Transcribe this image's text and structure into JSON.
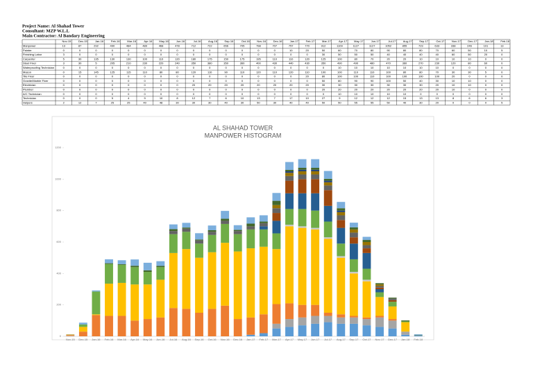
{
  "header": {
    "project": "Project Name: Al Shahad  Tower",
    "consultant": "Consultant: MZP W.L.L",
    "contractor": "Main Contractor: Al Bandary Engineering"
  },
  "chart_data": {
    "type": "bar",
    "stacked": true,
    "title": "AL SHAHAD TOWER",
    "subtitle": "MANPOWER HISTOGRAM",
    "categories": [
      "Nov-15",
      "Dec-15",
      "Jan-16",
      "Feb-16",
      "Mar-16",
      "Apr-16",
      "May-16",
      "Jun-16",
      "Jul-16",
      "Aug-16",
      "Sep-16",
      "Oct-16",
      "Nov-16",
      "Dec-16",
      "Jan-17",
      "Feb-17",
      "Mar-17",
      "Apr-17",
      "May-17",
      "Jun-17",
      "Jul-17",
      "Aug-17",
      "Sep-17",
      "Oct-17",
      "Nov-17",
      "Dec-17",
      "Jan-18",
      "Feb-18"
    ],
    "total_label": "Manpower",
    "totals": [
      13,
      87,
      292,
      490,
      484,
      489,
      468,
      478,
      712,
      722,
      656,
      705,
      798,
      707,
      757,
      770,
      912,
      1109,
      1127,
      1127,
      1052,
      855,
      723,
      633,
      338,
      246,
      101,
      13
    ],
    "series": [
      {
        "name": "Painter",
        "color": "#5b9bd5",
        "values": [
          0,
          0,
          0,
          0,
          0,
          0,
          0,
          0,
          0,
          0,
          0,
          0,
          0,
          0,
          10,
          20,
          50,
          60,
          70,
          80,
          90,
          80,
          80,
          70,
          60,
          50,
          10,
          5
        ]
      },
      {
        "name": "Finishing Labor",
        "color": "#a5a5a5",
        "values": [
          3,
          0,
          0,
          0,
          0,
          0,
          0,
          0,
          0,
          0,
          0,
          0,
          0,
          0,
          0,
          0,
          30,
          50,
          50,
          50,
          40,
          40,
          40,
          40,
          60,
          50,
          20,
          0
        ]
      },
      {
        "name": "Carpenter",
        "color": "#ed7d31",
        "values": [
          5,
          30,
          135,
          130,
          130,
          100,
          110,
          120,
          180,
          175,
          150,
          175,
          195,
          110,
          110,
          120,
          125,
          100,
          80,
          70,
          20,
          20,
          10,
          10,
          10,
          10,
          0,
          0
        ]
      },
      {
        "name": "Steel Fixer",
        "color": "#ffc000",
        "values": [
          3,
          30,
          5,
          205,
          210,
          230,
          220,
          240,
          350,
          380,
          350,
          360,
          400,
          430,
          440,
          430,
          350,
          490,
          490,
          480,
          470,
          360,
          270,
          230,
          120,
          80,
          60,
          0
        ]
      },
      {
        "name": "Waterproofing Technician",
        "color": "#c9c9c9",
        "values": [
          0,
          0,
          0,
          0,
          0,
          0,
          0,
          0,
          0,
          0,
          0,
          0,
          0,
          0,
          0,
          0,
          0,
          10,
          10,
          10,
          10,
          10,
          10,
          10,
          0,
          0,
          0,
          0
        ]
      },
      {
        "name": "Mason",
        "color": "#70ad47",
        "values": [
          0,
          15,
          145,
          125,
          115,
          110,
          80,
          80,
          120,
          110,
          90,
          110,
          120,
          110,
          120,
          110,
          100,
          100,
          110,
          110,
          100,
          80,
          80,
          70,
          30,
          30,
          5,
          0
        ]
      },
      {
        "name": "Tile Fixer",
        "color": "#255e91",
        "values": [
          0,
          0,
          0,
          0,
          0,
          0,
          0,
          0,
          0,
          0,
          0,
          0,
          0,
          0,
          0,
          20,
          80,
          100,
          100,
          110,
          100,
          100,
          100,
          100,
          20,
          0,
          0,
          0
        ]
      },
      {
        "name": "Granite/Marble Fixer",
        "color": "#9e480e",
        "values": [
          0,
          0,
          0,
          0,
          0,
          0,
          0,
          0,
          0,
          0,
          0,
          0,
          0,
          0,
          0,
          0,
          50,
          80,
          90,
          90,
          100,
          50,
          40,
          30,
          10,
          10,
          0,
          0
        ]
      },
      {
        "name": "Electrician",
        "color": "#636363",
        "values": [
          0,
          0,
          0,
          0,
          0,
          0,
          0,
          0,
          20,
          20,
          20,
          20,
          20,
          20,
          20,
          20,
          30,
          30,
          30,
          30,
          30,
          30,
          30,
          20,
          10,
          10,
          0,
          0
        ]
      },
      {
        "name": "Plumber",
        "color": "#997300",
        "values": [
          0,
          0,
          0,
          0,
          0,
          0,
          0,
          0,
          0,
          0,
          0,
          0,
          0,
          0,
          0,
          0,
          20,
          20,
          20,
          20,
          20,
          20,
          20,
          20,
          10,
          0,
          0,
          0
        ]
      },
      {
        "name": "A/C Technician",
        "color": "#264478",
        "values": [
          0,
          0,
          0,
          0,
          0,
          0,
          0,
          0,
          0,
          0,
          0,
          0,
          0,
          0,
          0,
          0,
          0,
          10,
          10,
          10,
          10,
          10,
          0,
          0,
          0,
          0,
          0,
          0
        ]
      },
      {
        "name": "Technician",
        "color": "#43682b",
        "values": [
          0,
          0,
          0,
          5,
          4,
          9,
          10,
          8,
          12,
          7,
          6,
          10,
          13,
          7,
          17,
          10,
          27,
          9,
          12,
          12,
          12,
          15,
          13,
          13,
          8,
          6,
          6,
          3
        ]
      },
      {
        "name": "Helpers",
        "color": "#7cafdd",
        "values": [
          2,
          12,
          7,
          25,
          25,
          40,
          48,
          30,
          30,
          30,
          40,
          30,
          50,
          30,
          40,
          40,
          50,
          50,
          55,
          55,
          50,
          40,
          30,
          20,
          0,
          0,
          0,
          5
        ]
      }
    ],
    "ylim": [
      0,
      1200
    ],
    "yticks": [
      0,
      200,
      400,
      600,
      800,
      1000,
      1200
    ]
  }
}
